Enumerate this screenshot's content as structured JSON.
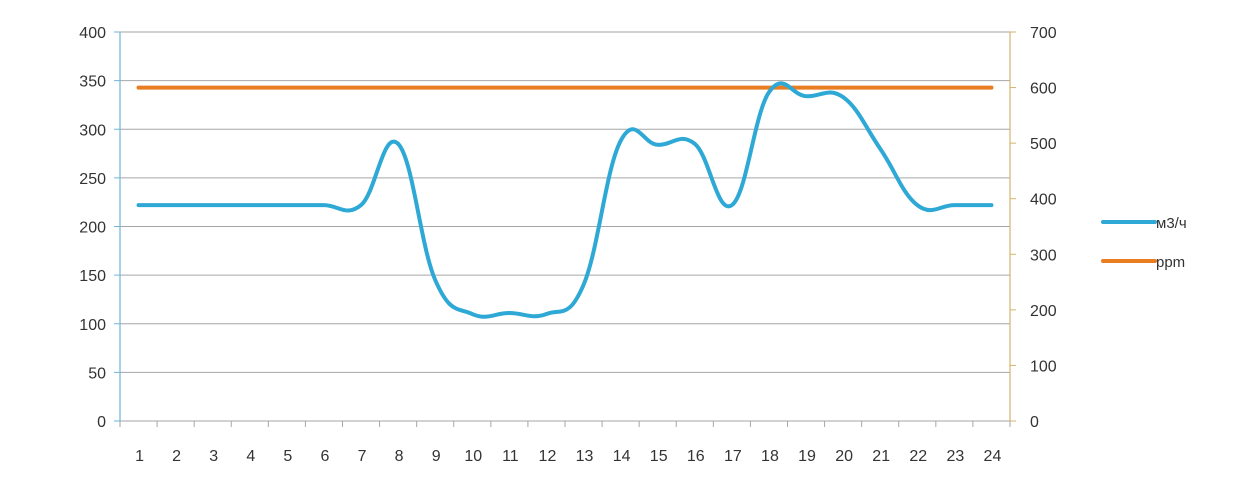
{
  "chart_data": {
    "type": "line",
    "title": "",
    "xlabel": "",
    "ylabel": "",
    "y2label": "",
    "grid": true,
    "legend_position": "right",
    "categories": [
      "1",
      "2",
      "3",
      "4",
      "5",
      "6",
      "7",
      "8",
      "9",
      "10",
      "11",
      "12",
      "13",
      "14",
      "15",
      "16",
      "17",
      "18",
      "19",
      "20",
      "21",
      "22",
      "23",
      "24"
    ],
    "y_axis": {
      "range": [
        0,
        400
      ],
      "ticks": [
        "0",
        "50",
        "100",
        "150",
        "200",
        "250",
        "300",
        "350",
        "400"
      ],
      "color": "#6cb6d9"
    },
    "y2_axis": {
      "range": [
        0,
        700
      ],
      "ticks": [
        "0",
        "100",
        "200",
        "300",
        "400",
        "500",
        "600",
        "700"
      ],
      "color": "#d4b36a"
    },
    "series": [
      {
        "name": "м3/ч",
        "axis": "left",
        "color": "#2ea8d5",
        "values": [
          222,
          222,
          222,
          222,
          222,
          222,
          222,
          285,
          145,
          110,
          111,
          110,
          140,
          288,
          284,
          285,
          222,
          338,
          334,
          333,
          280,
          222,
          222,
          222
        ]
      },
      {
        "name": "ppm",
        "axis": "right",
        "color": "#e87d22",
        "values": [
          600,
          600,
          600,
          600,
          600,
          600,
          600,
          600,
          600,
          600,
          600,
          600,
          600,
          600,
          600,
          600,
          600,
          600,
          600,
          600,
          600,
          600,
          600,
          600
        ]
      }
    ]
  }
}
